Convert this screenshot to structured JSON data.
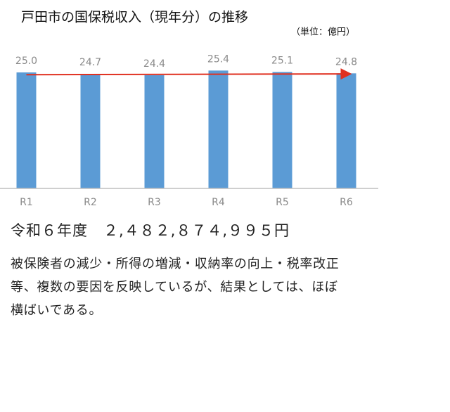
{
  "chart_data": {
    "type": "bar",
    "title": "戸田市の国保税収入（現年分）の推移",
    "subtitle": "（単位：億円）",
    "categories": [
      "R1",
      "R2",
      "R3",
      "R4",
      "R5",
      "R6"
    ],
    "values": [
      25.0,
      24.7,
      24.4,
      25.4,
      25.1,
      24.8
    ],
    "value_labels": [
      "25.0",
      "24.7",
      "24.4",
      "25.4",
      "25.1",
      "24.8"
    ],
    "color": "#5b9bd5",
    "trend_color": "#e03020",
    "ylim": [
      0,
      30
    ]
  },
  "summary": {
    "heading": "令和６年度　２,４８２,８７４,９９５円",
    "body": "被保険者の減少・所得の増減・収納率の向上・税率改正等、複数の要因を反映しているが、結果としては、ほぼ横ばいである。"
  }
}
